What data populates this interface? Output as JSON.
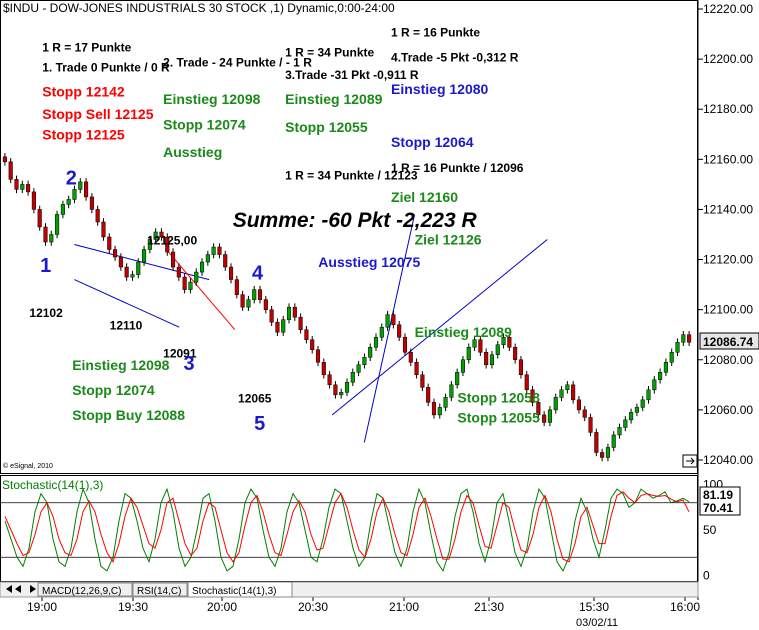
{
  "window": {
    "title": "$INDU - DOW-JONES INDUSTRIALS 30 STOCK ,1) Dynamic,0:00-24:00",
    "copyright": "© eSignal, 2010"
  },
  "colors": {
    "price": "#000000",
    "stoch_k": "#008000",
    "stoch_d": "#ff0000",
    "trend_blue": "#0000c0",
    "trend_red": "#ff0000",
    "text_green": "#1a8a1a",
    "text_red": "#ff0000",
    "text_blue": "#1a1acc",
    "text_black": "#000000"
  },
  "chart_data": [
    {
      "type": "line",
      "name": "price",
      "title": "$INDU - DOW-JONES INDUSTRIALS 30 STOCK ,1) Dynamic,0:00-24:00",
      "y_ticks": [
        12220,
        12200,
        12180,
        12160,
        12140,
        12120,
        12100,
        12080,
        12060,
        12040
      ],
      "ylim": [
        12036,
        12222
      ],
      "current_price": "12086.74",
      "x_ticks": [
        "19:00",
        "19:30",
        "20:00",
        "20:30",
        "21:00",
        "21:30",
        "15:30",
        "16:00"
      ],
      "x_date": "03/02/11",
      "series": [
        {
          "values": [
            12159,
            12152,
            12148,
            12150,
            12147,
            12140,
            12133,
            12127,
            12130,
            12138,
            12142,
            12144,
            12148,
            12151,
            12145,
            12140,
            12135,
            12129,
            12124,
            12121,
            12117,
            12113,
            12114,
            12119,
            12124,
            12128,
            12131,
            12129,
            12123,
            12117,
            12113,
            12108,
            12111,
            12115,
            12119,
            12122,
            12125,
            12122,
            12117,
            12112,
            12106,
            12101,
            12104,
            12108,
            12104,
            12100,
            12095,
            12091,
            12096,
            12101,
            12097,
            12092,
            12088,
            12084,
            12079,
            12074,
            12070,
            12066,
            12067,
            12071,
            12075,
            12078,
            12081,
            12085,
            12089,
            12093,
            12098,
            12094,
            12089,
            12083,
            12079,
            12074,
            12069,
            12063,
            12058,
            12061,
            12065,
            12070,
            12075,
            12080,
            12085,
            12088,
            12083,
            12078,
            12082,
            12086,
            12089,
            12085,
            12080,
            12074,
            12068,
            12063,
            12058,
            12055,
            12060,
            12065,
            12068,
            12070,
            12064,
            12060,
            12057,
            12051,
            12043,
            12041,
            12045,
            12050,
            12053,
            12056,
            12059,
            12061,
            12064,
            12068,
            12072,
            12075,
            12079,
            12083,
            12087,
            12090,
            12087
          ]
        }
      ],
      "annotations": [
        {
          "id": "a1",
          "text": "1 R = 17 Punkte",
          "color": "black",
          "x": 32,
          "y": 12203
        },
        {
          "id": "a2",
          "text": "1. Trade 0 Punkte / 0 R",
          "color": "black",
          "x": 32,
          "y": 12195
        },
        {
          "id": "a3",
          "text": "Stopp 12142",
          "color": "red",
          "x": 32,
          "y": 12185
        },
        {
          "id": "a4",
          "text": "Stopp Sell 12125",
          "color": "red",
          "x": 32,
          "y": 12176
        },
        {
          "id": "a5",
          "text": "Stopp 12125",
          "color": "red",
          "x": 32,
          "y": 12168
        },
        {
          "id": "a6",
          "text": "2. Trade - 24 Punkte / - 1 R",
          "color": "black",
          "x": 145,
          "y": 12197
        },
        {
          "id": "a7",
          "text": "Einstieg 12098",
          "color": "green",
          "x": 145,
          "y": 12182
        },
        {
          "id": "a8",
          "text": "Stopp 12074",
          "color": "green",
          "x": 145,
          "y": 12172
        },
        {
          "id": "a9",
          "text": "Ausstieg",
          "color": "green",
          "x": 145,
          "y": 12161
        },
        {
          "id": "a10",
          "text": "1 R = 34 Punkte",
          "color": "black",
          "x": 259,
          "y": 12201
        },
        {
          "id": "a11",
          "text": "3.Trade  -31 Pkt -0,911 R",
          "color": "black",
          "x": 259,
          "y": 12192
        },
        {
          "id": "a12",
          "text": "Einstieg 12089",
          "color": "green",
          "x": 259,
          "y": 12182
        },
        {
          "id": "a13",
          "text": "Stopp 12055",
          "color": "green",
          "x": 259,
          "y": 12171
        },
        {
          "id": "a14",
          "text": "1 R = 16 Punkte",
          "color": "black",
          "x": 358,
          "y": 12209
        },
        {
          "id": "a15",
          "text": "4.Trade -5 Pkt -0,312 R",
          "color": "black",
          "x": 358,
          "y": 12199
        },
        {
          "id": "a16",
          "text": "Einstieg 12080",
          "color": "blue",
          "x": 358,
          "y": 12186
        },
        {
          "id": "a17",
          "text": "Stopp 12064",
          "color": "blue",
          "x": 358,
          "y": 12165
        },
        {
          "id": "a18",
          "text": "1 R = 16 Punkte / 12096",
          "color": "black",
          "x": 358,
          "y": 12155
        },
        {
          "id": "a19",
          "text": "Ziel 12160",
          "color": "green",
          "x": 358,
          "y": 12143
        },
        {
          "id": "a20",
          "text": "1 R = 34 Punkte / 12123",
          "color": "black",
          "x": 259,
          "y": 12152
        },
        {
          "id": "a21",
          "text": "Summe: -60 Pkt -2,223 R",
          "color": "black",
          "x": 210,
          "y": 12133
        },
        {
          "id": "a22",
          "text": "12125,00",
          "color": "black",
          "x": 130,
          "y": 12126
        },
        {
          "id": "a23",
          "text": "Ziel 12126",
          "color": "green",
          "x": 380,
          "y": 12126
        },
        {
          "id": "a24",
          "text": "Ausstieg 12075",
          "color": "blue",
          "x": 290,
          "y": 12117
        },
        {
          "id": "a25",
          "text": "Einstieg 12089",
          "color": "green",
          "x": 380,
          "y": 12089
        },
        {
          "id": "a26",
          "text": "12102",
          "color": "black",
          "x": 20,
          "y": 12097
        },
        {
          "id": "a27",
          "text": "12110",
          "color": "black",
          "x": 95,
          "y": 12092
        },
        {
          "id": "a28",
          "text": "12091",
          "color": "black",
          "x": 145,
          "y": 12081
        },
        {
          "id": "a29",
          "text": "12065",
          "color": "black",
          "x": 215,
          "y": 12063
        },
        {
          "id": "a30",
          "text": "Einstieg 12098",
          "color": "green",
          "x": 60,
          "y": 12076
        },
        {
          "id": "a31",
          "text": "Stopp 12074",
          "color": "green",
          "x": 60,
          "y": 12066
        },
        {
          "id": "a32",
          "text": "Stopp Buy 12088",
          "color": "green",
          "x": 60,
          "y": 12056
        },
        {
          "id": "a33",
          "text": "Stopp 12058",
          "color": "green",
          "x": 420,
          "y": 12063
        },
        {
          "id": "a34",
          "text": "Stopp 12055",
          "color": "green",
          "x": 420,
          "y": 12055
        }
      ],
      "wave_labels": [
        {
          "text": "1",
          "x": 30,
          "y": 12115
        },
        {
          "text": "2",
          "x": 54,
          "y": 12150
        },
        {
          "text": "3",
          "x": 164,
          "y": 12076
        },
        {
          "text": "4",
          "x": 228,
          "y": 12112
        },
        {
          "text": "5",
          "x": 230,
          "y": 12052
        }
      ],
      "trendlines": [
        {
          "color": "blue",
          "from": [
            62,
            12126
          ],
          "to": [
            188,
            12112
          ]
        },
        {
          "color": "blue",
          "from": [
            62,
            12112
          ],
          "to": [
            160,
            12093
          ]
        },
        {
          "color": "red",
          "from": [
            148,
            12124
          ],
          "to": [
            212,
            12092
          ]
        },
        {
          "color": "blue",
          "from": [
            303,
            12058
          ],
          "to": [
            504,
            12128
          ]
        },
        {
          "color": "blue",
          "from": [
            333,
            12047
          ],
          "to": [
            380,
            12138
          ]
        }
      ]
    },
    {
      "type": "line",
      "name": "stochastic",
      "title": "Stochastic(14(1),3)",
      "y_ticks": [
        100,
        50,
        0
      ],
      "levels": [
        80,
        20
      ],
      "ylim": [
        -5,
        105
      ],
      "values_label_k": "81.19",
      "values_label_d": "70.41",
      "series": [
        {
          "name": "%K",
          "values": [
            60,
            40,
            20,
            10,
            30,
            70,
            90,
            80,
            40,
            15,
            10,
            30,
            70,
            95,
            80,
            40,
            10,
            5,
            20,
            60,
            90,
            85,
            60,
            30,
            15,
            40,
            80,
            95,
            70,
            30,
            10,
            20,
            50,
            85,
            90,
            60,
            20,
            5,
            10,
            40,
            80,
            95,
            85,
            50,
            20,
            10,
            30,
            70,
            90,
            80,
            50,
            20,
            15,
            40,
            75,
            95,
            90,
            60,
            30,
            10,
            20,
            60,
            90,
            85,
            55,
            25,
            10,
            30,
            70,
            95,
            80,
            45,
            15,
            5,
            25,
            65,
            90,
            95,
            70,
            35,
            15,
            40,
            80,
            90,
            60,
            25,
            10,
            30,
            70,
            95,
            85,
            50,
            15,
            5,
            20,
            60,
            85,
            70,
            40,
            20,
            50,
            85,
            95,
            90,
            75,
            80,
            95,
            90,
            85,
            88,
            92,
            80,
            82,
            85,
            81
          ]
        },
        {
          "name": "%D",
          "values": [
            65,
            50,
            35,
            22,
            25,
            45,
            70,
            80,
            65,
            40,
            25,
            22,
            40,
            70,
            82,
            70,
            45,
            25,
            15,
            35,
            65,
            85,
            75,
            55,
            35,
            30,
            50,
            80,
            85,
            60,
            35,
            22,
            30,
            60,
            80,
            75,
            50,
            25,
            15,
            25,
            55,
            80,
            88,
            70,
            45,
            25,
            22,
            45,
            70,
            82,
            70,
            45,
            28,
            30,
            55,
            80,
            90,
            75,
            50,
            28,
            20,
            40,
            70,
            85,
            70,
            45,
            25,
            22,
            45,
            75,
            85,
            65,
            40,
            18,
            18,
            40,
            70,
            88,
            80,
            55,
            32,
            30,
            55,
            80,
            75,
            50,
            28,
            25,
            45,
            75,
            88,
            70,
            40,
            18,
            15,
            35,
            65,
            75,
            55,
            35,
            35,
            65,
            88,
            92,
            85,
            80,
            88,
            90,
            88,
            87,
            88,
            84,
            81,
            83,
            70
          ]
        }
      ]
    }
  ],
  "tabs": [
    {
      "label": "MACD(12,26,9,C)"
    },
    {
      "label": "RSI(14,C)"
    },
    {
      "label": "Stochastic(14(1),3)"
    }
  ]
}
